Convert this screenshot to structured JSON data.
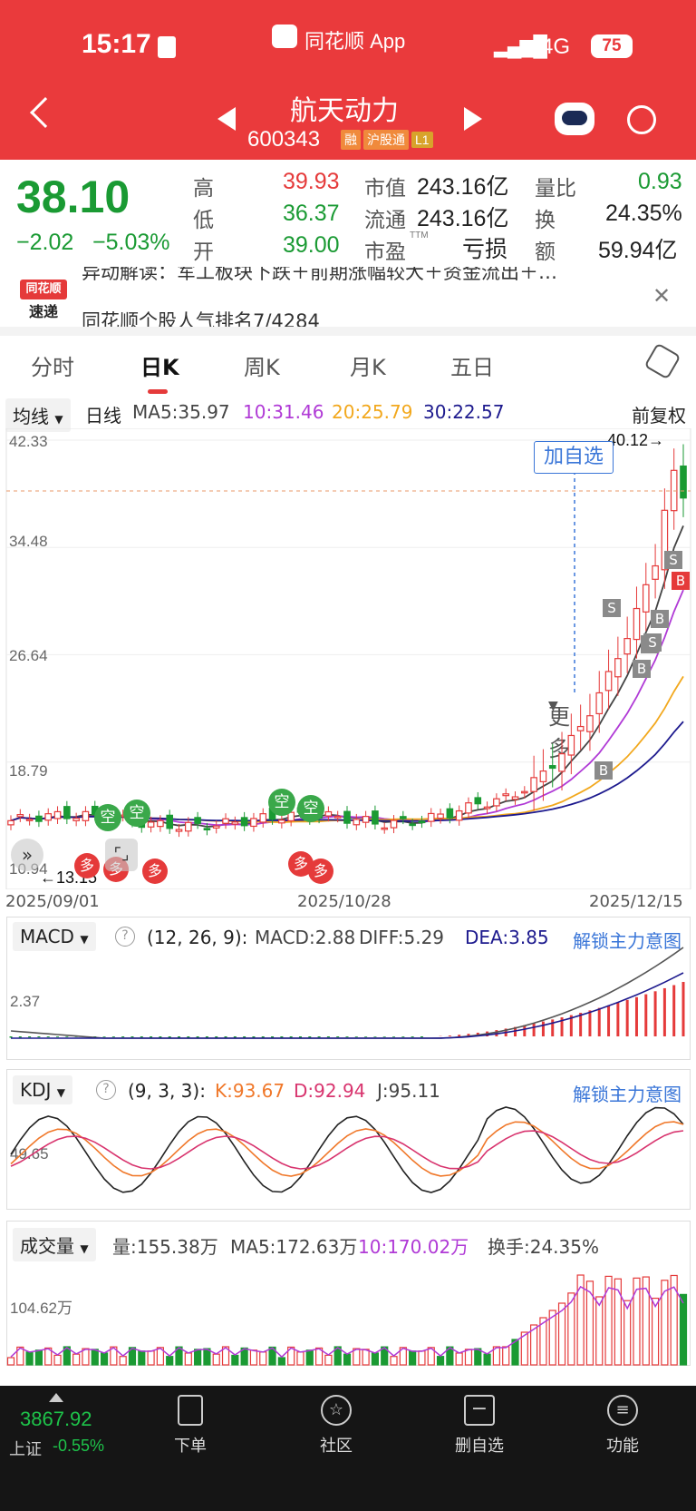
{
  "status": {
    "time": "15:17",
    "app_name": "同花顺 App",
    "network": "4G",
    "battery": "75"
  },
  "stock": {
    "name": "航天动力",
    "code": "600343",
    "tags": [
      "融",
      "沪股通",
      "L1"
    ]
  },
  "quote": {
    "price": "38.10",
    "change": "−2.02",
    "change_pct": "−5.03%",
    "high_label": "高",
    "high": "39.93",
    "low_label": "低",
    "low": "36.37",
    "open_label": "开",
    "open": "39.00",
    "mktcap_label": "市值",
    "mktcap": "243.16亿",
    "float_label": "流通",
    "float": "243.16亿",
    "pe_label": "市盈",
    "pe_sup": "TTM",
    "pe": "亏损",
    "vol_ratio_label": "量比",
    "vol_ratio": "0.93",
    "turnover_label": "换",
    "turnover": "24.35%",
    "amount_label": "额",
    "amount": "59.94亿"
  },
  "news": {
    "logo_top": "同花顺",
    "logo_bottom": "速递",
    "line1": "异动解读：军工板块下跌＋前期涨幅较大＋资金流出＋…",
    "line2": "同花顺个股人气排名7/4284"
  },
  "tabs": [
    "分时",
    "日K",
    "周K",
    "月K",
    "五日",
    "更多"
  ],
  "active_tab": "日K",
  "kline": {
    "indicator": "均线",
    "period": "日线",
    "ma5": "MA5:35.97",
    "ma10": "10:31.46",
    "ma20": "20:25.79",
    "ma30": "30:22.57",
    "adjust": "前复权",
    "y_labels": [
      "42.33",
      "34.48",
      "26.64",
      "18.79",
      "10.94"
    ],
    "x_labels": [
      "2025/09/01",
      "2025/10/28",
      "2025/12/15"
    ],
    "high_mark": "40.12→",
    "low_mark": "←13.15",
    "add_watch": "加自选",
    "signals": {
      "kong": "空",
      "duo": "多",
      "s": "S",
      "b": "B"
    }
  },
  "macd": {
    "name": "MACD",
    "params": "(12, 26, 9):",
    "macd": "MACD:2.88",
    "diff": "DIFF:5.29",
    "dea": "DEA:3.85",
    "unlock": "解锁主力意图",
    "y_label": "2.37"
  },
  "kdj": {
    "name": "KDJ",
    "params": "(9, 3, 3):",
    "k": "K:93.67",
    "d": "D:92.94",
    "j": "J:95.11",
    "unlock": "解锁主力意图",
    "y_label": "49.65"
  },
  "volume": {
    "name": "成交量",
    "vol": "量:155.38万",
    "ma5": "MA5:172.63万",
    "ma10": "10:170.02万",
    "turnover": "换手:24.35%",
    "y_label": "104.62万"
  },
  "bottom_bar": {
    "index_value": "3867.92",
    "index_name": "上证",
    "index_change": "-0.55%",
    "items": [
      "下单",
      "社区",
      "删自选",
      "功能"
    ]
  },
  "colors": {
    "up": "#e53a3a",
    "down": "#1a9a33",
    "header": "#ea3a3c",
    "ma5": "#444444",
    "ma10": "#b03ad6",
    "ma20": "#f2a81d",
    "ma30": "#1d1a8e"
  }
}
